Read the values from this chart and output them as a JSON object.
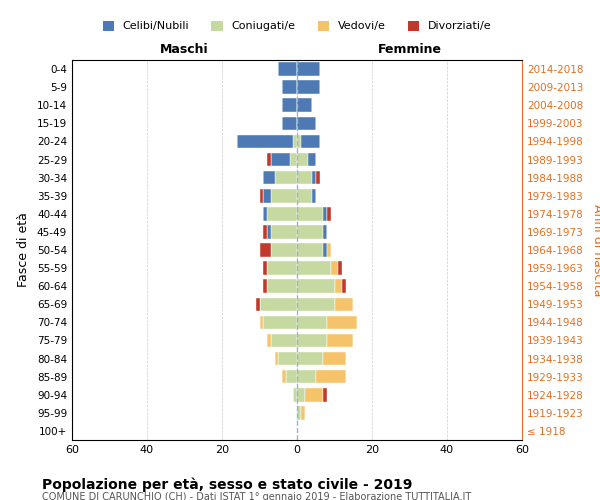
{
  "age_groups": [
    "100+",
    "95-99",
    "90-94",
    "85-89",
    "80-84",
    "75-79",
    "70-74",
    "65-69",
    "60-64",
    "55-59",
    "50-54",
    "45-49",
    "40-44",
    "35-39",
    "30-34",
    "25-29",
    "20-24",
    "15-19",
    "10-14",
    "5-9",
    "0-4"
  ],
  "birth_years": [
    "≤ 1918",
    "1919-1923",
    "1924-1928",
    "1929-1933",
    "1934-1938",
    "1939-1943",
    "1944-1948",
    "1949-1953",
    "1954-1958",
    "1959-1963",
    "1964-1968",
    "1969-1973",
    "1974-1978",
    "1979-1983",
    "1984-1988",
    "1989-1993",
    "1994-1998",
    "1999-2003",
    "2004-2008",
    "2009-2013",
    "2014-2018"
  ],
  "colors": {
    "celibi": "#4d7ab5",
    "coniugati": "#c5d9a0",
    "vedovi": "#f5c36a",
    "divorziati": "#c0392b"
  },
  "males": {
    "celibi": [
      0,
      0,
      0,
      0,
      0,
      0,
      0,
      0,
      0,
      0,
      0,
      1,
      1,
      2,
      3,
      5,
      15,
      4,
      4,
      4,
      5
    ],
    "coniugati": [
      0,
      0,
      1,
      3,
      5,
      7,
      9,
      10,
      8,
      8,
      7,
      7,
      8,
      7,
      6,
      2,
      1,
      0,
      0,
      0,
      0
    ],
    "vedovi": [
      0,
      0,
      0,
      1,
      1,
      1,
      1,
      0,
      0,
      0,
      0,
      0,
      0,
      0,
      0,
      0,
      0,
      0,
      0,
      0,
      0
    ],
    "divorziati": [
      0,
      0,
      0,
      0,
      0,
      0,
      0,
      1,
      1,
      1,
      3,
      1,
      0,
      1,
      0,
      1,
      0,
      0,
      0,
      0,
      0
    ]
  },
  "females": {
    "nubili": [
      0,
      0,
      0,
      0,
      0,
      0,
      0,
      0,
      0,
      0,
      1,
      1,
      1,
      1,
      1,
      2,
      5,
      5,
      4,
      6,
      6
    ],
    "coniugate": [
      0,
      1,
      2,
      5,
      7,
      8,
      8,
      10,
      10,
      9,
      7,
      7,
      7,
      4,
      4,
      3,
      1,
      0,
      0,
      0,
      0
    ],
    "vedove": [
      0,
      1,
      5,
      8,
      6,
      7,
      8,
      5,
      2,
      2,
      1,
      0,
      0,
      0,
      0,
      0,
      0,
      0,
      0,
      0,
      0
    ],
    "divorziate": [
      0,
      0,
      1,
      0,
      0,
      0,
      0,
      0,
      1,
      1,
      0,
      0,
      1,
      0,
      1,
      0,
      0,
      0,
      0,
      0,
      0
    ]
  },
  "title": "Popolazione per età, sesso e stato civile - 2019",
  "subtitle": "COMUNE DI CARUNCHIO (CH) - Dati ISTAT 1° gennaio 2019 - Elaborazione TUTTITALIA.IT",
  "xlabel_left": "Maschi",
  "xlabel_right": "Femmine",
  "ylabel": "Fasce di età",
  "ylabel_right": "Anni di nascita",
  "xlim": 60,
  "xticks": [
    -60,
    -40,
    -20,
    0,
    20,
    40,
    60
  ],
  "legend_labels": [
    "Celibi/Nubili",
    "Coniugati/e",
    "Vedovi/e",
    "Divorziati/e"
  ]
}
